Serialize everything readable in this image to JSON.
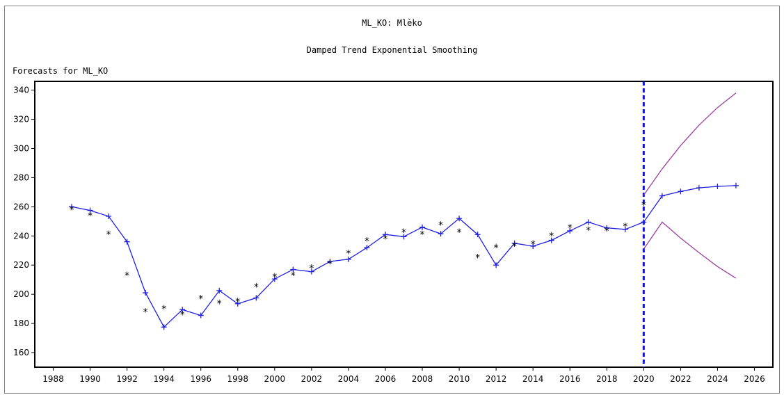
{
  "title": "ML_KO: Mlèko",
  "subtitle": "Damped Trend Exponential Smoothing",
  "plot_label": "Forecasts for ML_KO",
  "chart_data": {
    "type": "line",
    "xlim": [
      1987,
      2027
    ],
    "ylim": [
      150,
      346
    ],
    "x_ticks": [
      1988,
      1990,
      1992,
      1994,
      1996,
      1998,
      2000,
      2002,
      2004,
      2006,
      2008,
      2010,
      2012,
      2014,
      2016,
      2018,
      2020,
      2022,
      2024,
      2026
    ],
    "y_ticks": [
      160,
      180,
      200,
      220,
      240,
      260,
      280,
      300,
      320,
      340
    ],
    "forecast_origin": 2020,
    "colors": {
      "fitted": "#1f1fe0",
      "bounds": "#9a3fa0",
      "observed": "#000000",
      "origin_line": "#1010e0"
    },
    "series": [
      {
        "marker": "+",
        "x": [
          1989,
          1990,
          1991,
          1992,
          1993,
          1994,
          1995,
          1996,
          1997,
          1998,
          1999,
          2000,
          2001,
          2002,
          2003,
          2004,
          2005,
          2006,
          2007,
          2008,
          2009,
          2010,
          2011,
          2012,
          2013,
          2014,
          2015,
          2016,
          2017,
          2018,
          2019,
          2020,
          2021,
          2022,
          2023,
          2024,
          2025
        ],
        "values": [
          260,
          257.5,
          253.5,
          236,
          201,
          177.5,
          189.5,
          185.5,
          202.5,
          193.5,
          197.5,
          210.5,
          217,
          215.5,
          222.5,
          224,
          232,
          241,
          239.5,
          246,
          241.5,
          252,
          241,
          220,
          235,
          233,
          237,
          243.5,
          249.5,
          245.5,
          244.5,
          249.5,
          267.5,
          270.5,
          273,
          274,
          274.5
        ]
      },
      {
        "marker": "*",
        "x": [
          1989,
          1990,
          1991,
          1992,
          1993,
          1994,
          1995,
          1996,
          1997,
          1998,
          1999,
          2000,
          2001,
          2002,
          2003,
          2004,
          2005,
          2006,
          2007,
          2008,
          2009,
          2010,
          2011,
          2012,
          2013,
          2014,
          2015,
          2016,
          2017,
          2018,
          2019,
          2020
        ],
        "values": [
          258.5,
          254.5,
          241.5,
          213.5,
          188.5,
          190.5,
          186.5,
          197.5,
          194,
          195.5,
          205.5,
          212.5,
          213.5,
          218.5,
          221.5,
          228.5,
          237,
          238.5,
          243,
          241.5,
          248,
          243,
          225.5,
          232.5,
          233.5,
          235,
          240.5,
          246,
          244.5,
          244,
          247,
          261.5
        ]
      },
      {
        "x": [
          2020,
          2021,
          2022,
          2023,
          2024,
          2025
        ],
        "values": [
          268,
          286,
          302,
          316,
          328,
          338
        ]
      },
      {
        "x": [
          2020,
          2021,
          2022,
          2023,
          2024,
          2025
        ],
        "values": [
          231,
          249.5,
          238.5,
          228.5,
          219,
          211
        ]
      }
    ]
  }
}
